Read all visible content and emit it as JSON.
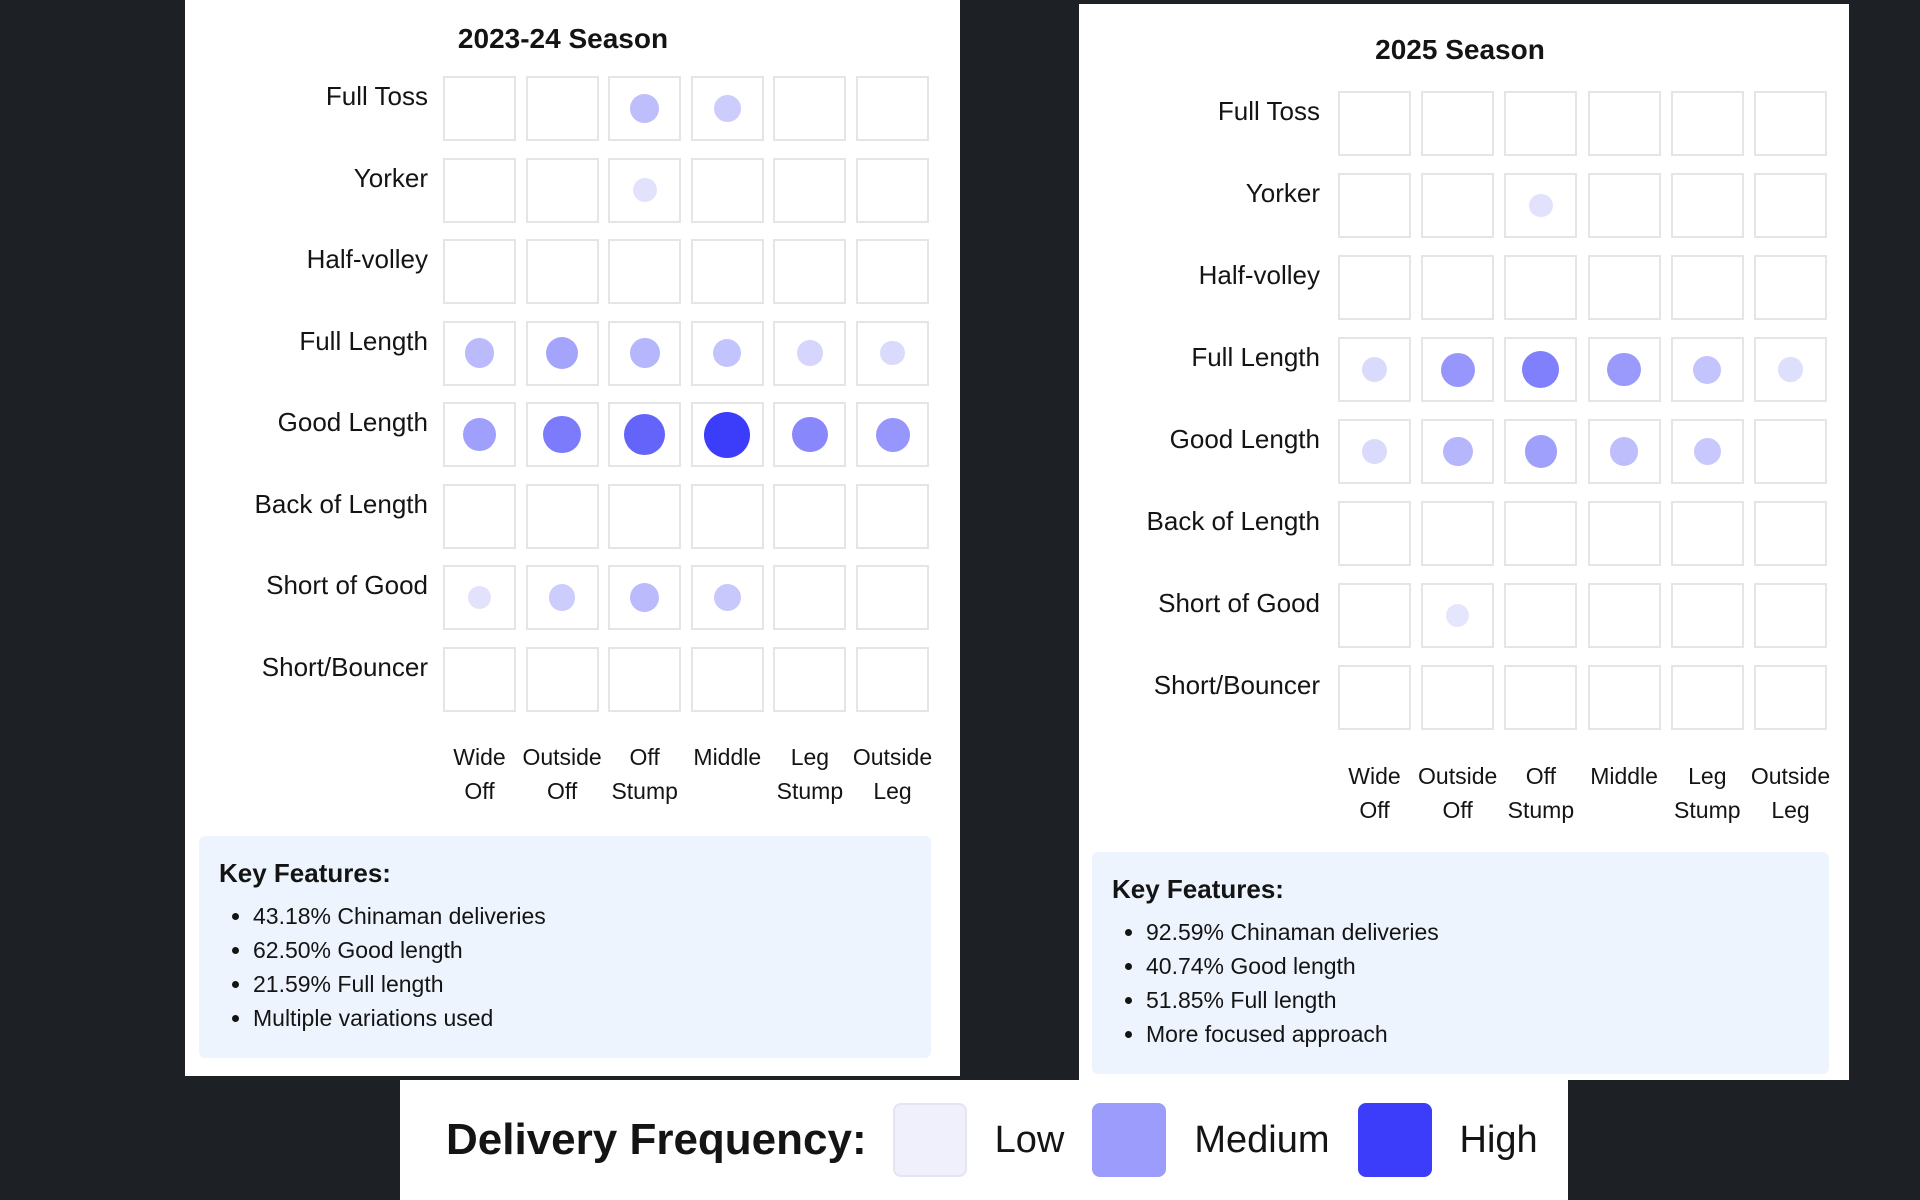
{
  "chart_data": [
    {
      "type": "heatmap",
      "title": "2023-24 Season",
      "rows": [
        "Full Toss",
        "Yorker",
        "Half-volley",
        "Full Length",
        "Good Length",
        "Back of Length",
        "Short of Good",
        "Short/Bouncer"
      ],
      "columns": [
        "Wide\nOff",
        "Outside\nOff",
        "Off\nStump",
        "Middle",
        "Leg\nStump",
        "Outside\nLeg"
      ],
      "values": [
        [
          0,
          0,
          0.28,
          0.2,
          0,
          0
        ],
        [
          0,
          0,
          0.08,
          0,
          0,
          0
        ],
        [
          0,
          0,
          0,
          0,
          0,
          0
        ],
        [
          0.3,
          0.42,
          0.32,
          0.25,
          0.15,
          0.12
        ],
        [
          0.45,
          0.65,
          0.78,
          1.0,
          0.58,
          0.5
        ],
        [
          0,
          0,
          0,
          0,
          0,
          0
        ],
        [
          0.08,
          0.2,
          0.3,
          0.22,
          0,
          0
        ],
        [
          0,
          0,
          0,
          0,
          0,
          0
        ]
      ],
      "key_features": {
        "title": "Key Features:",
        "items": [
          "43.18% Chinaman deliveries",
          "62.50% Good length",
          "21.59% Full length",
          "Multiple variations used"
        ]
      }
    },
    {
      "type": "heatmap",
      "title": "2025 Season",
      "rows": [
        "Full Toss",
        "Yorker",
        "Half-volley",
        "Full Length",
        "Good Length",
        "Back of Length",
        "Short of Good",
        "Short/Bouncer"
      ],
      "columns": [
        "Wide\nOff",
        "Outside\nOff",
        "Off\nStump",
        "Middle",
        "Leg\nStump",
        "Outside\nLeg"
      ],
      "values": [
        [
          0,
          0,
          0,
          0,
          0,
          0
        ],
        [
          0,
          0,
          0.08,
          0,
          0,
          0
        ],
        [
          0,
          0,
          0,
          0,
          0,
          0
        ],
        [
          0.12,
          0.5,
          0.62,
          0.48,
          0.25,
          0.1
        ],
        [
          0.12,
          0.32,
          0.45,
          0.28,
          0.22,
          0
        ],
        [
          0,
          0,
          0,
          0,
          0,
          0
        ],
        [
          0,
          0.06,
          0,
          0,
          0,
          0
        ],
        [
          0,
          0,
          0,
          0,
          0,
          0
        ]
      ],
      "key_features": {
        "title": "Key Features:",
        "items": [
          "92.59% Chinaman deliveries",
          "40.74% Good length",
          "51.85% Full length",
          "More focused approach"
        ]
      }
    }
  ],
  "legend": {
    "title": "Delivery Frequency:",
    "items": [
      {
        "label": "Low",
        "color": "#f0f0fd"
      },
      {
        "label": "Medium",
        "color": "#9c9cfc"
      },
      {
        "label": "High",
        "color": "#3c3cfb"
      }
    ]
  }
}
